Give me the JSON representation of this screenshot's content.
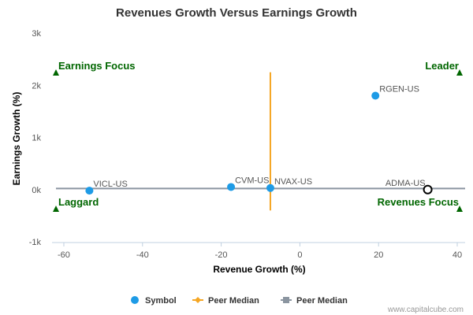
{
  "chart_data": {
    "type": "scatter",
    "title": "Revenues Growth Versus Earnings Growth",
    "xlabel": "Revenue Growth (%)",
    "ylabel": "Earnings Growth (%)",
    "xlim": [
      -63,
      42
    ],
    "ylim": [
      -1000,
      3000
    ],
    "x_ticks": [
      {
        "value": -60,
        "label": "-60"
      },
      {
        "value": -40,
        "label": "-40"
      },
      {
        "value": -20,
        "label": "-20"
      },
      {
        "value": 0,
        "label": "0"
      },
      {
        "value": 20,
        "label": "20"
      },
      {
        "value": 40,
        "label": "40"
      }
    ],
    "y_ticks": [
      {
        "value": -1000,
        "label": "-1k"
      },
      {
        "value": 0,
        "label": "0k"
      },
      {
        "value": 1000,
        "label": "1k"
      },
      {
        "value": 2000,
        "label": "2k"
      },
      {
        "value": 3000,
        "label": "3k"
      }
    ],
    "points": [
      {
        "label": "VICL-US",
        "x": -53.5,
        "y": -20,
        "highlight": false
      },
      {
        "label": "CVM-US",
        "x": -17.5,
        "y": 50,
        "highlight": false
      },
      {
        "label": "NVAX-US",
        "x": -7.5,
        "y": 30,
        "highlight": false
      },
      {
        "label": "RGEN-US",
        "x": 19.2,
        "y": 1800,
        "highlight": false
      },
      {
        "label": "ADMA-US",
        "x": 32.5,
        "y": 0,
        "highlight": true
      }
    ],
    "peer_median_x": -7.5,
    "peer_median_x_range": [
      -400,
      2250
    ],
    "peer_median_y": 20,
    "peer_median_y_range": [
      -62,
      42
    ],
    "quadrants": [
      {
        "label": "Earnings Focus",
        "corner": "top-left"
      },
      {
        "label": "Leader",
        "corner": "top-right"
      },
      {
        "label": "Laggard",
        "corner": "bottom-left"
      },
      {
        "label": "Revenues Focus",
        "corner": "bottom-right"
      }
    ],
    "legend": [
      {
        "label": "Symbol",
        "marker": "circle",
        "color": "#1e9be6"
      },
      {
        "label": "Peer Median",
        "marker": "diamond-line",
        "color": "#f5a623"
      },
      {
        "label": "Peer Median",
        "marker": "square-line",
        "color": "#8b95a0"
      }
    ],
    "legend_position": "bottom",
    "grid": false,
    "colors": {
      "symbol": "#1e9be6",
      "peer_median_x": "#f5a623",
      "peer_median_y": "#8b95a0",
      "quadrant": "#006600",
      "highlight_stroke": "#000000"
    }
  },
  "credit": "www.capitalcube.com"
}
